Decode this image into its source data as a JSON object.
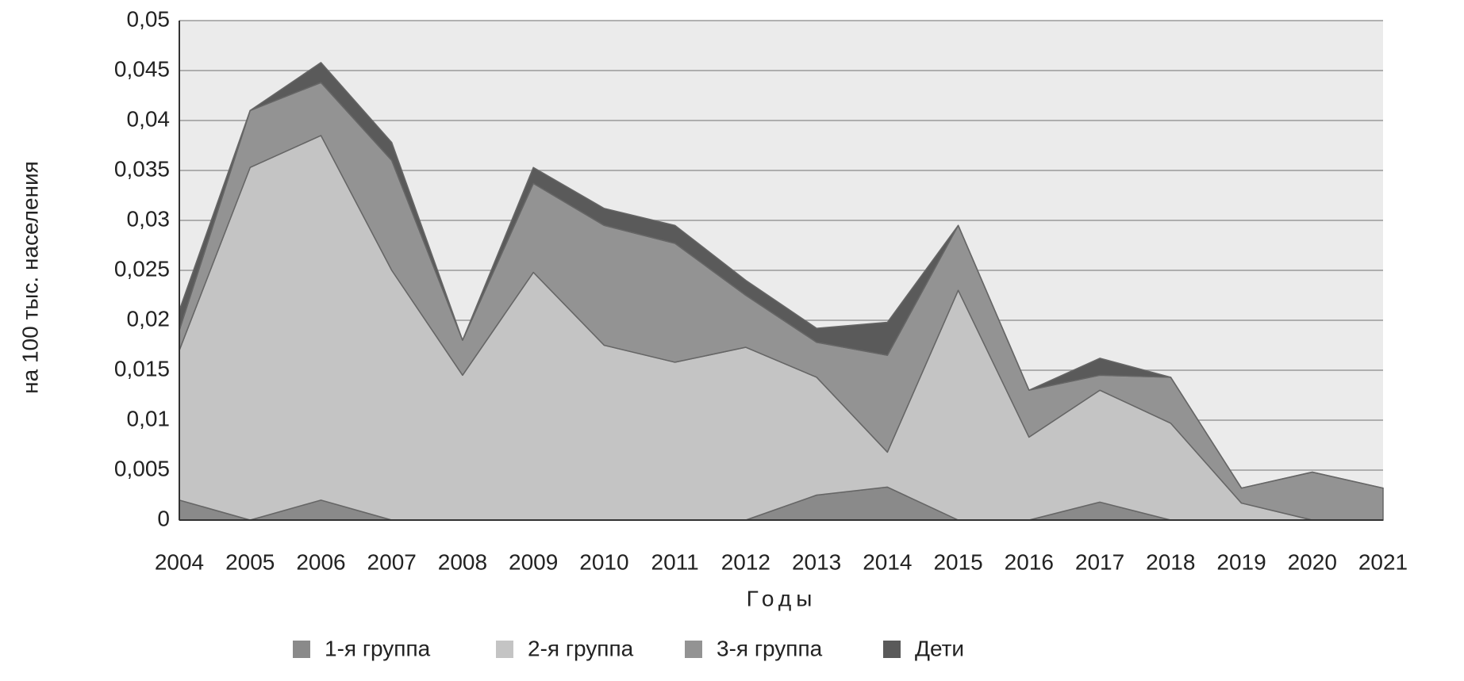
{
  "chart_data": {
    "type": "stacked_area",
    "ylabel": "на 100 тыс. населения",
    "xlabel": "Годы",
    "categories": [
      "2004",
      "2005",
      "2006",
      "2007",
      "2008",
      "2009",
      "2010",
      "2011",
      "2012",
      "2013",
      "2014",
      "2015",
      "2016",
      "2017",
      "2018",
      "2019",
      "2020",
      "2021"
    ],
    "series": [
      {
        "name": "1-я группа",
        "color": "#8a8a8a",
        "values": [
          0.002,
          0,
          0.002,
          0,
          0,
          0,
          0,
          0,
          0,
          0.0025,
          0.0033,
          0,
          0,
          0.0018,
          0,
          0,
          0,
          0
        ]
      },
      {
        "name": "2-я группа",
        "color": "#c4c4c4",
        "values": [
          0.015,
          0.0353,
          0.0365,
          0.025,
          0.0145,
          0.0248,
          0.0175,
          0.0158,
          0.0173,
          0.0118,
          0.0035,
          0.023,
          0.0083,
          0.0112,
          0.0097,
          0.0017,
          0,
          0
        ]
      },
      {
        "name": "3-я группа",
        "color": "#939393",
        "values": [
          0.002,
          0.0057,
          0.0053,
          0.011,
          0.0035,
          0.0089,
          0.012,
          0.0119,
          0.0052,
          0.0035,
          0.0097,
          0.0065,
          0.0047,
          0.0015,
          0.0046,
          0.0015,
          0.0048,
          0.0032
        ]
      },
      {
        "name": "Дети",
        "color": "#5a5a5a",
        "values": [
          0.002,
          0,
          0.002,
          0.0018,
          0,
          0.0016,
          0.0017,
          0.0018,
          0.0015,
          0.0014,
          0.0033,
          0,
          0,
          0.0017,
          0,
          0,
          0,
          0
        ]
      }
    ],
    "ylim": [
      0,
      0.05
    ],
    "yticks": [
      0,
      {
        "value": 0.005,
        "label": "0,005"
      },
      {
        "value": 0.01,
        "label": "0,01"
      },
      {
        "value": 0.015,
        "label": "0,015"
      },
      {
        "value": 0.02,
        "label": "0,02"
      },
      {
        "value": 0.025,
        "label": "0,025"
      },
      {
        "value": 0.03,
        "label": "0,03"
      },
      {
        "value": 0.035,
        "label": "0,035"
      },
      {
        "value": 0.04,
        "label": "0,04"
      },
      {
        "value": 0.045,
        "label": "0,045"
      },
      {
        "value": 0.05,
        "label": "0,05"
      }
    ],
    "grid": true,
    "legend": "bottom"
  }
}
